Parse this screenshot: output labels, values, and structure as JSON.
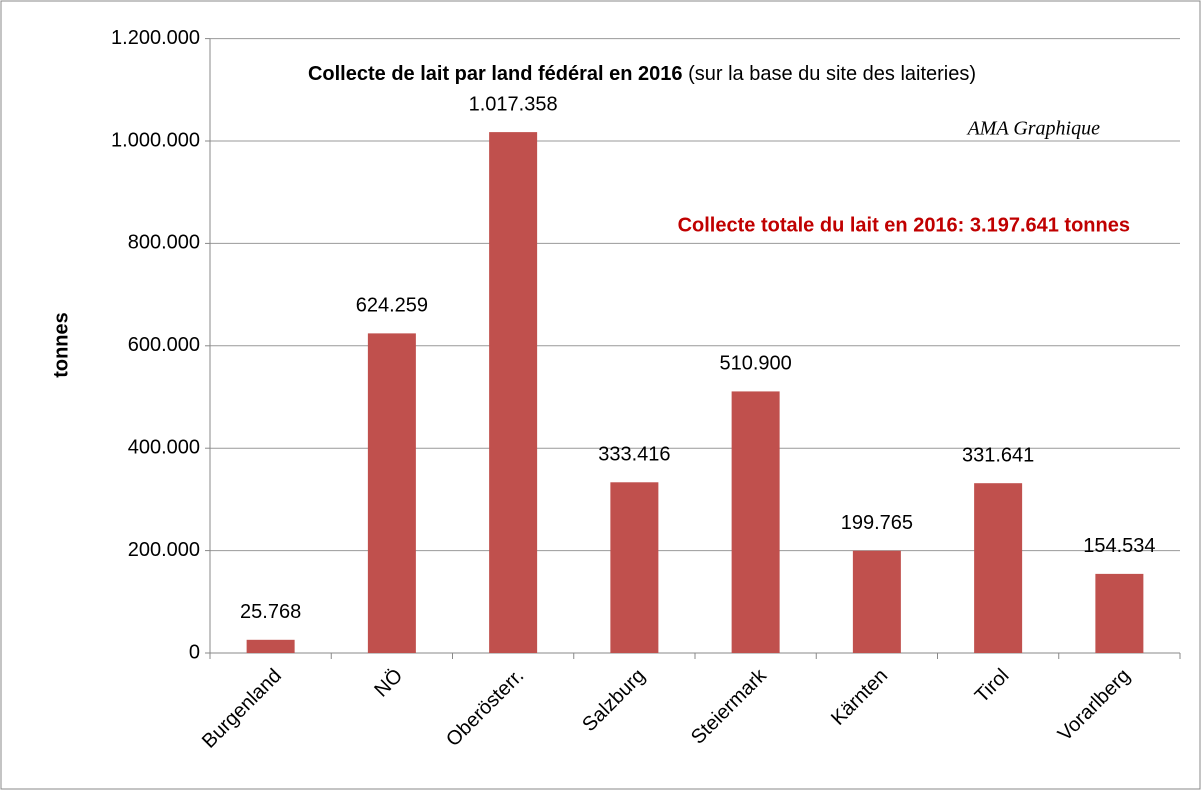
{
  "chart_data": {
    "type": "bar",
    "title": "Collecte de lait par land fédéral en 2016",
    "subtitle": "(sur la base du site des laiteries)",
    "annotations": [
      "AMA Graphique",
      "Collecte totale du lait en 2016: 3.197.641 tonnes"
    ],
    "y_label": "tonnes",
    "categories": [
      "Burgenland",
      "NÖ",
      "Oberösterr.",
      "Salzburg",
      "Steiermark",
      "Kärnten",
      "Tirol",
      "Vorarlberg"
    ],
    "values": [
      25768,
      624259,
      1017358,
      333416,
      510900,
      199765,
      331641,
      154534
    ],
    "value_labels": [
      "25.768",
      "624.259",
      "1.017.358",
      "333.416",
      "510.900",
      "199.765",
      "331.641",
      "154.534"
    ],
    "color": "#c0504d",
    "ylim": [
      0,
      1200000
    ],
    "yticks": [
      0,
      {
        "value": 200000,
        "label": "200.000"
      },
      {
        "value": 400000,
        "label": "400.000"
      },
      {
        "value": 600000,
        "label": "600.000"
      },
      {
        "value": 800000,
        "label": "800.000"
      },
      {
        "value": 1000000,
        "label": "1.000.000"
      },
      {
        "value": 1200000,
        "label": "1.200.000"
      }
    ],
    "grid": true
  }
}
